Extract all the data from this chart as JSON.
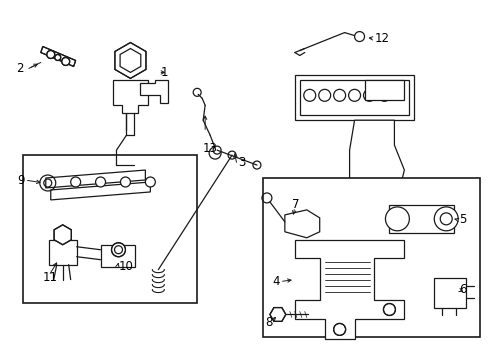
{
  "background_color": "#ffffff",
  "line_color": "#1a1a1a",
  "text_color": "#000000",
  "figsize": [
    4.89,
    3.6
  ],
  "dpi": 100,
  "components": {
    "label_fontsize": 8.5,
    "lw": 0.9
  }
}
